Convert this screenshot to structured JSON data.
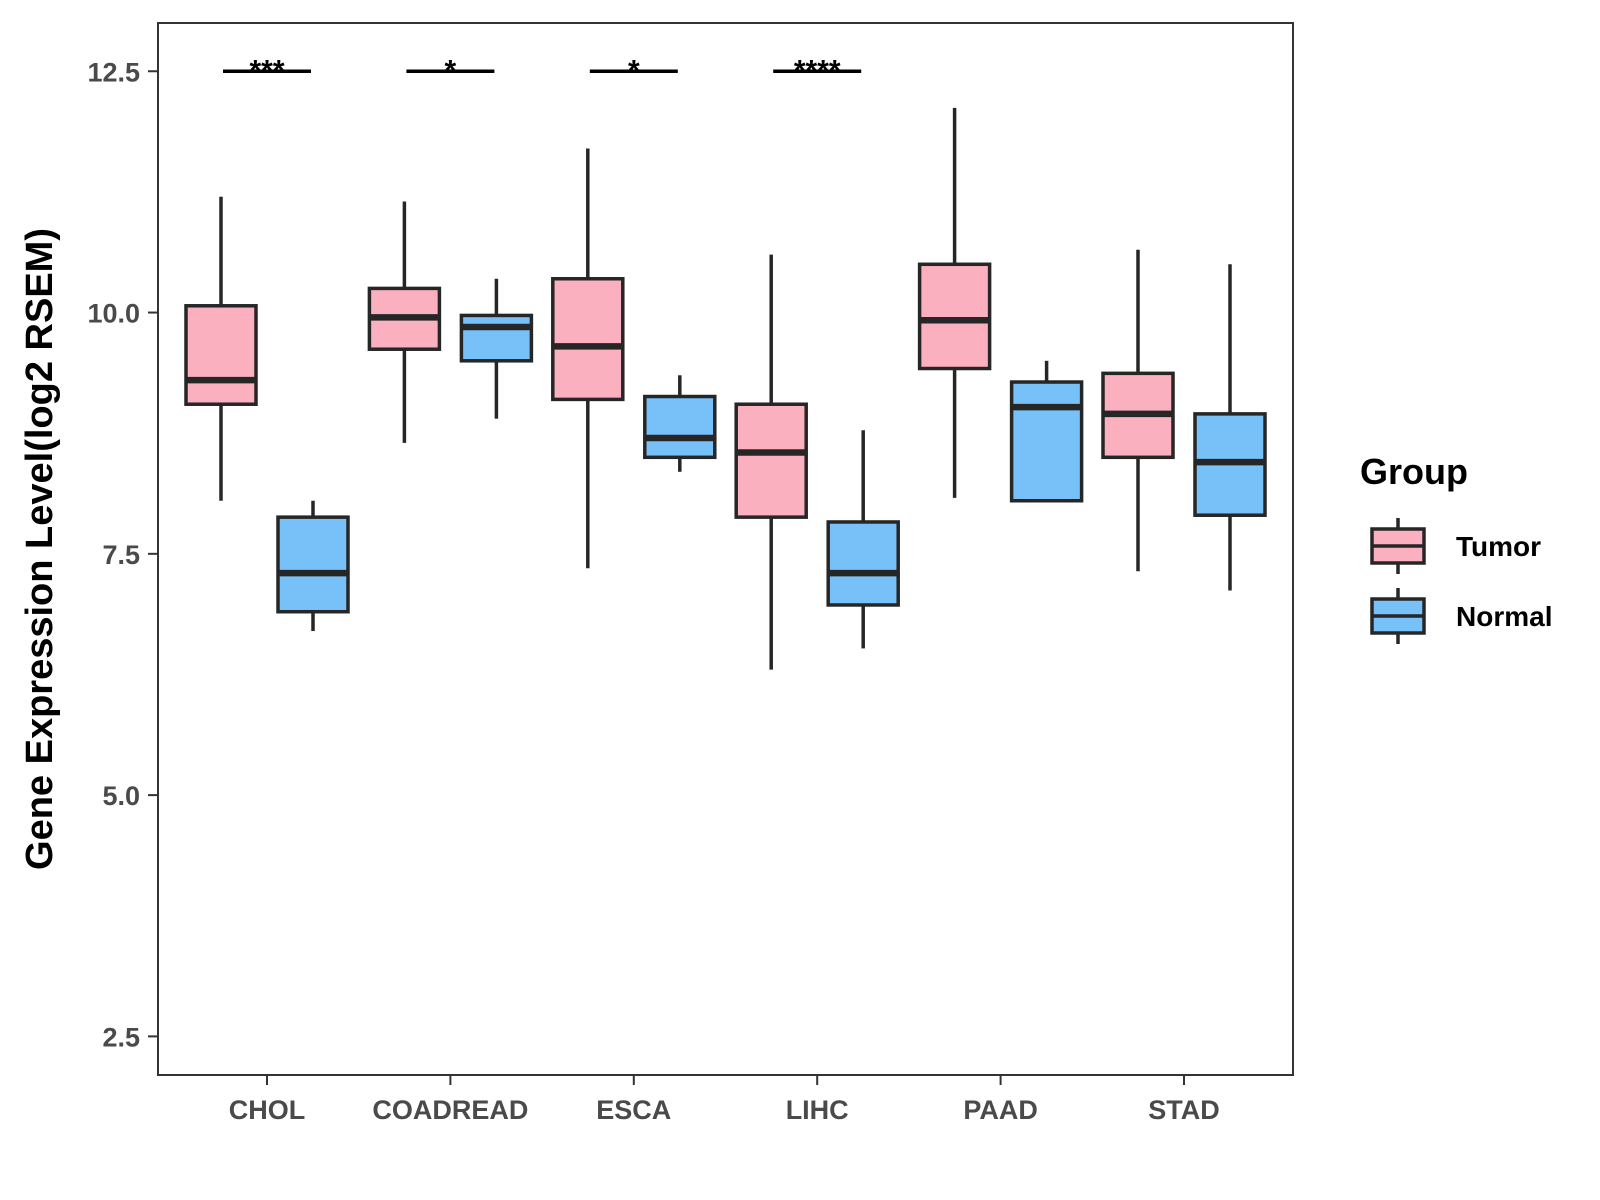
{
  "chart_data": {
    "type": "boxplot",
    "title": "",
    "xlabel": "",
    "ylabel": "Gene Expression Level(log2 RSEM)",
    "ylim": [
      2.1,
      13.0
    ],
    "yticks": [
      "2.5",
      "5.0",
      "7.5",
      "10.0",
      "12.5"
    ],
    "categories": [
      "CHOL",
      "COADREAD",
      "ESCA",
      "LIHC",
      "PAAD",
      "STAD"
    ],
    "legend": {
      "title": "Group",
      "position": "right",
      "items": [
        {
          "name": "Tumor",
          "color": "#fbb0c0"
        },
        {
          "name": "Normal",
          "color": "#78c1f8"
        }
      ]
    },
    "series": [
      {
        "name": "Tumor",
        "color": "#fbb0c0",
        "boxes": [
          {
            "category": "CHOL",
            "min": 8.05,
            "q1": 9.05,
            "median": 9.3,
            "q3": 10.07,
            "max": 11.2
          },
          {
            "category": "COADREAD",
            "min": 8.65,
            "q1": 9.62,
            "median": 9.95,
            "q3": 10.25,
            "max": 11.15
          },
          {
            "category": "ESCA",
            "min": 7.35,
            "q1": 9.1,
            "median": 9.65,
            "q3": 10.35,
            "max": 11.7
          },
          {
            "category": "LIHC",
            "min": 6.3,
            "q1": 7.88,
            "median": 8.55,
            "q3": 9.05,
            "max": 10.6
          },
          {
            "category": "PAAD",
            "min": 8.08,
            "q1": 9.42,
            "median": 9.92,
            "q3": 10.5,
            "max": 12.12
          },
          {
            "category": "STAD",
            "min": 7.32,
            "q1": 8.5,
            "median": 8.95,
            "q3": 9.37,
            "max": 10.65
          }
        ]
      },
      {
        "name": "Normal",
        "color": "#78c1f8",
        "boxes": [
          {
            "category": "CHOL",
            "min": 6.7,
            "q1": 6.9,
            "median": 7.3,
            "q3": 7.88,
            "max": 8.05
          },
          {
            "category": "COADREAD",
            "min": 8.9,
            "q1": 9.5,
            "median": 9.85,
            "q3": 9.97,
            "max": 10.35
          },
          {
            "category": "ESCA",
            "min": 8.35,
            "q1": 8.5,
            "median": 8.7,
            "q3": 9.13,
            "max": 9.35
          },
          {
            "category": "LIHC",
            "min": 6.52,
            "q1": 6.97,
            "median": 7.3,
            "q3": 7.83,
            "max": 8.78
          },
          {
            "category": "PAAD",
            "min": 8.05,
            "q1": 8.05,
            "median": 9.02,
            "q3": 9.28,
            "max": 9.5
          },
          {
            "category": "STAD",
            "min": 7.12,
            "q1": 7.9,
            "median": 8.45,
            "q3": 8.95,
            "max": 10.5
          }
        ]
      }
    ],
    "annotations": [
      {
        "category": "CHOL",
        "y": 12.5,
        "label": "***"
      },
      {
        "category": "COADREAD",
        "y": 12.5,
        "label": "*"
      },
      {
        "category": "ESCA",
        "y": 12.5,
        "label": "*"
      },
      {
        "category": "LIHC",
        "y": 12.5,
        "label": "****"
      }
    ]
  }
}
